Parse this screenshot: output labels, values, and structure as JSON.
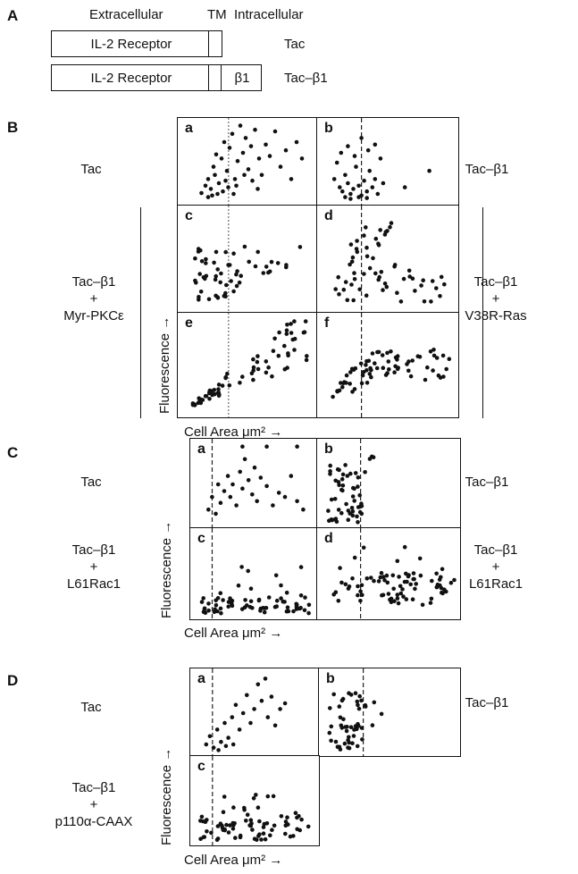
{
  "panelA": {
    "letter": "A",
    "extracellular": "Extracellular",
    "tm": "TM",
    "intracellular": "Intracellular",
    "receptor_label": "IL-2 Receptor",
    "beta1": "β1",
    "rows": [
      "Tac",
      "Tac–β1"
    ]
  },
  "panelB": {
    "letter": "B",
    "left_top": "Tac",
    "right_top": "Tac–β1",
    "left_group": [
      "Tac–β1",
      "+",
      "Myr-PKCε"
    ],
    "right_group": [
      "Tac–β1",
      "+",
      "V38R-Ras"
    ],
    "ylabel": "Fluorescence →",
    "xlabel": "Cell Area μm² →",
    "plots": [
      "a",
      "b",
      "c",
      "d",
      "e",
      "f"
    ]
  },
  "panelC": {
    "letter": "C",
    "left_top": "Tac",
    "right_top": "Tac–β1",
    "left_bottom": [
      "Tac–β1",
      "+",
      "L61Rac1"
    ],
    "right_bottom": [
      "Tac–β1",
      "+",
      "L61Rac1"
    ],
    "ylabel": "Fluorescence →",
    "xlabel": "Cell Area μm² →",
    "plots": [
      "a",
      "b",
      "c",
      "d"
    ]
  },
  "panelD": {
    "letter": "D",
    "left_top": "Tac",
    "right_top": "Tac–β1",
    "left_bottom": [
      "Tac–β1",
      "+",
      "p110α-CAAX"
    ],
    "ylabel": "Fluorescence →",
    "xlabel": "Cell Area μm² →",
    "plots": [
      "a",
      "b",
      "c"
    ]
  },
  "chart_data": [
    {
      "type": "scatter",
      "plot": "B-a",
      "points": [
        [
          0.15,
          0.13
        ],
        [
          0.18,
          0.22
        ],
        [
          0.2,
          0.3
        ],
        [
          0.22,
          0.18
        ],
        [
          0.24,
          0.45
        ],
        [
          0.26,
          0.6
        ],
        [
          0.28,
          0.25
        ],
        [
          0.3,
          0.55
        ],
        [
          0.32,
          0.75
        ],
        [
          0.34,
          0.4
        ],
        [
          0.36,
          0.68
        ],
        [
          0.38,
          0.85
        ],
        [
          0.4,
          0.3
        ],
        [
          0.42,
          0.52
        ],
        [
          0.44,
          0.95
        ],
        [
          0.46,
          0.62
        ],
        [
          0.48,
          0.8
        ],
        [
          0.5,
          0.42
        ],
        [
          0.52,
          0.7
        ],
        [
          0.55,
          0.9
        ],
        [
          0.58,
          0.55
        ],
        [
          0.6,
          0.35
        ],
        [
          0.63,
          0.72
        ],
        [
          0.66,
          0.58
        ],
        [
          0.7,
          0.88
        ],
        [
          0.74,
          0.45
        ],
        [
          0.78,
          0.65
        ],
        [
          0.82,
          0.3
        ],
        [
          0.86,
          0.75
        ],
        [
          0.9,
          0.55
        ],
        [
          0.2,
          0.08
        ],
        [
          0.23,
          0.1
        ],
        [
          0.27,
          0.12
        ],
        [
          0.31,
          0.15
        ],
        [
          0.35,
          0.2
        ],
        [
          0.39,
          0.12
        ],
        [
          0.25,
          0.35
        ],
        [
          0.33,
          0.28
        ],
        [
          0.41,
          0.22
        ],
        [
          0.47,
          0.35
        ],
        [
          0.53,
          0.28
        ],
        [
          0.57,
          0.18
        ]
      ]
    },
    {
      "type": "scatter",
      "plot": "B-b",
      "points": [
        [
          0.1,
          0.3
        ],
        [
          0.12,
          0.5
        ],
        [
          0.14,
          0.2
        ],
        [
          0.16,
          0.15
        ],
        [
          0.18,
          0.35
        ],
        [
          0.2,
          0.25
        ],
        [
          0.22,
          0.12
        ],
        [
          0.24,
          0.18
        ],
        [
          0.26,
          0.45
        ],
        [
          0.28,
          0.22
        ],
        [
          0.3,
          0.1
        ],
        [
          0.32,
          0.28
        ],
        [
          0.34,
          0.15
        ],
        [
          0.36,
          0.4
        ],
        [
          0.38,
          0.2
        ],
        [
          0.4,
          0.3
        ],
        [
          0.42,
          0.12
        ],
        [
          0.44,
          0.55
        ],
        [
          0.46,
          0.25
        ],
        [
          0.15,
          0.62
        ],
        [
          0.2,
          0.7
        ],
        [
          0.25,
          0.58
        ],
        [
          0.3,
          0.8
        ],
        [
          0.35,
          0.65
        ],
        [
          0.4,
          0.72
        ],
        [
          0.18,
          0.08
        ],
        [
          0.22,
          0.06
        ],
        [
          0.28,
          0.08
        ],
        [
          0.34,
          0.07
        ],
        [
          0.62,
          0.2
        ],
        [
          0.8,
          0.4
        ]
      ]
    },
    {
      "type": "scatter",
      "plot": "C-a",
      "points": [
        [
          0.12,
          0.2
        ],
        [
          0.15,
          0.35
        ],
        [
          0.18,
          0.15
        ],
        [
          0.2,
          0.5
        ],
        [
          0.22,
          0.28
        ],
        [
          0.25,
          0.42
        ],
        [
          0.28,
          0.6
        ],
        [
          0.3,
          0.35
        ],
        [
          0.32,
          0.5
        ],
        [
          0.35,
          0.25
        ],
        [
          0.38,
          0.65
        ],
        [
          0.4,
          0.45
        ],
        [
          0.42,
          0.8
        ],
        [
          0.45,
          0.55
        ],
        [
          0.48,
          0.38
        ],
        [
          0.5,
          0.7
        ],
        [
          0.52,
          0.3
        ],
        [
          0.55,
          0.58
        ],
        [
          0.6,
          0.48
        ],
        [
          0.65,
          0.25
        ],
        [
          0.7,
          0.4
        ],
        [
          0.75,
          0.35
        ],
        [
          0.8,
          0.6
        ],
        [
          0.85,
          0.3
        ],
        [
          0.9,
          0.2
        ],
        [
          0.4,
          0.95
        ],
        [
          0.6,
          0.95
        ],
        [
          0.85,
          0.95
        ]
      ]
    },
    {
      "type": "scatter",
      "plot": "D-a",
      "points": [
        [
          0.1,
          0.12
        ],
        [
          0.13,
          0.22
        ],
        [
          0.16,
          0.08
        ],
        [
          0.19,
          0.3
        ],
        [
          0.22,
          0.15
        ],
        [
          0.25,
          0.38
        ],
        [
          0.28,
          0.2
        ],
        [
          0.31,
          0.45
        ],
        [
          0.34,
          0.6
        ],
        [
          0.37,
          0.3
        ],
        [
          0.4,
          0.5
        ],
        [
          0.43,
          0.72
        ],
        [
          0.46,
          0.38
        ],
        [
          0.49,
          0.55
        ],
        [
          0.52,
          0.85
        ],
        [
          0.55,
          0.65
        ],
        [
          0.58,
          0.92
        ],
        [
          0.6,
          0.45
        ],
        [
          0.63,
          0.7
        ],
        [
          0.66,
          0.35
        ],
        [
          0.7,
          0.55
        ],
        [
          0.74,
          0.62
        ],
        [
          0.2,
          0.05
        ],
        [
          0.26,
          0.1
        ],
        [
          0.32,
          0.12
        ]
      ]
    }
  ]
}
